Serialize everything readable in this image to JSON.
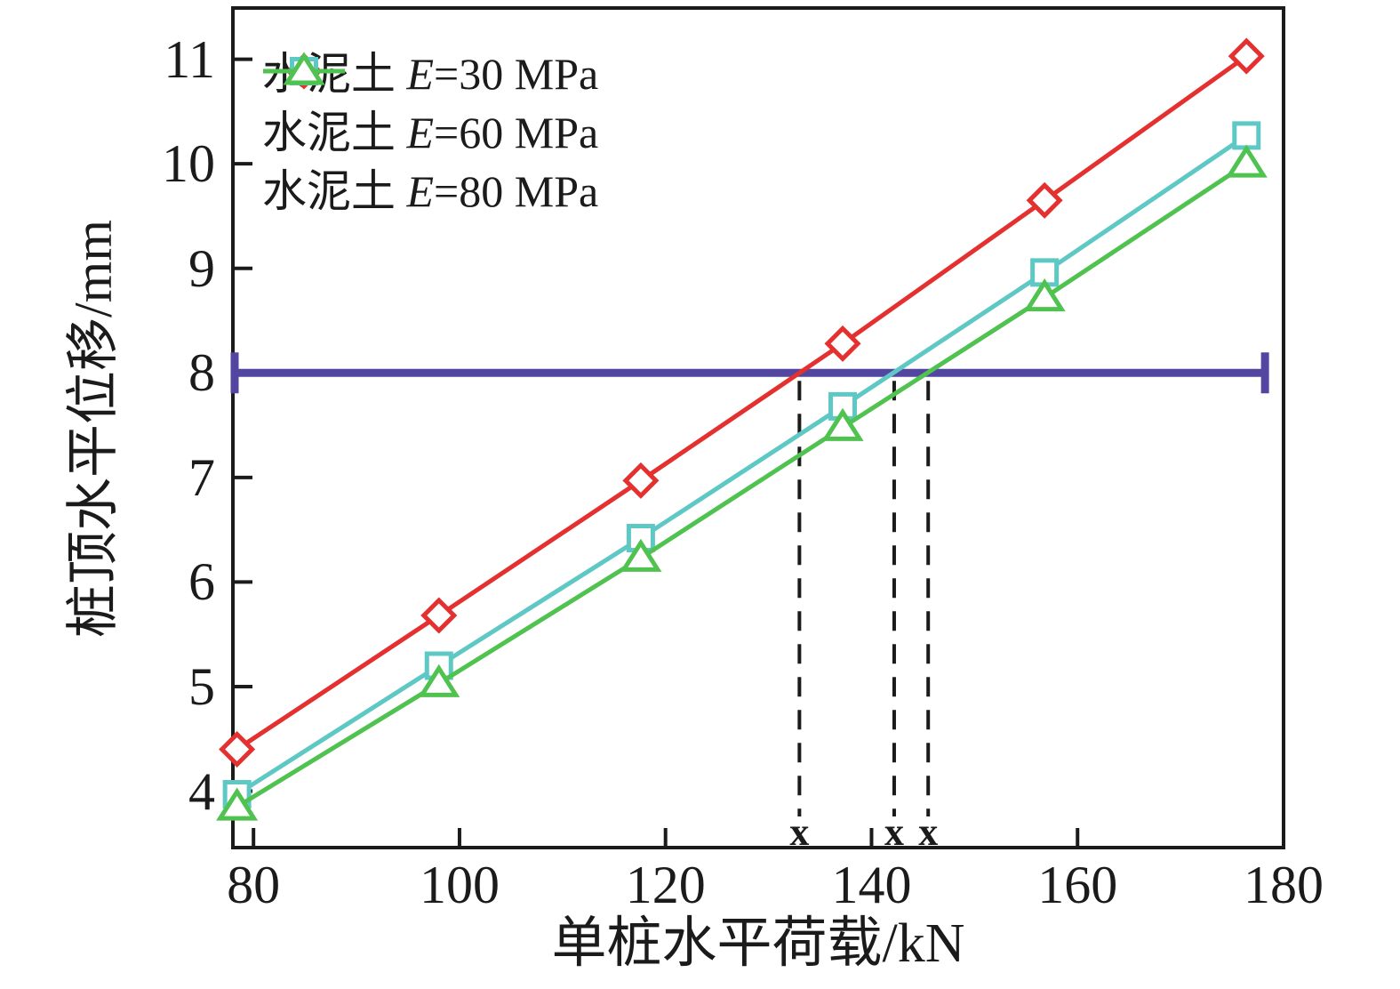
{
  "figure": {
    "background": "#ffffff",
    "axis_color": "#1b1b1b",
    "text_color": "#1b1b1b"
  },
  "chart_data": {
    "type": "line",
    "title": "",
    "xlabel": "单桩水平荷载/kN",
    "ylabel": "桩顶水平位移/mm",
    "xlim": [
      78,
      180
    ],
    "ylim": [
      3.46,
      11.49
    ],
    "x_ticks": [
      80,
      100,
      120,
      140,
      160,
      180
    ],
    "y_ticks": [
      4,
      5,
      6,
      7,
      8,
      9,
      10,
      11
    ],
    "grid": false,
    "legend_position": "top-left",
    "x": [
      78.4,
      98,
      117.6,
      137.2,
      156.8,
      176.4
    ],
    "series": [
      {
        "name_prefix": "水泥土 ",
        "name_symbol": "E",
        "name_suffix": "=30 MPa",
        "marker": "diamond",
        "color": "#e53030",
        "values": [
          4.4,
          5.68,
          6.97,
          8.28,
          9.65,
          11.03
        ]
      },
      {
        "name_prefix": "水泥土 ",
        "name_symbol": "E",
        "name_suffix": "=60 MPa",
        "marker": "square",
        "color": "#5ec8c4",
        "values": [
          3.97,
          5.2,
          6.42,
          7.68,
          8.96,
          10.27
        ]
      },
      {
        "name_prefix": "水泥土 ",
        "name_symbol": "E",
        "name_suffix": "=80 MPa",
        "marker": "triangle",
        "color": "#4fc24f",
        "values": [
          3.85,
          5.03,
          6.23,
          7.48,
          8.72,
          10.0
        ]
      }
    ],
    "reference_line": {
      "y": 8,
      "x_start": 78,
      "x_end": 178.2,
      "color": "#5346a0"
    },
    "drop_lines": {
      "x_values": [
        133,
        142.2,
        145.5
      ],
      "marker_label": "x",
      "color": "#1b1b1b"
    }
  }
}
